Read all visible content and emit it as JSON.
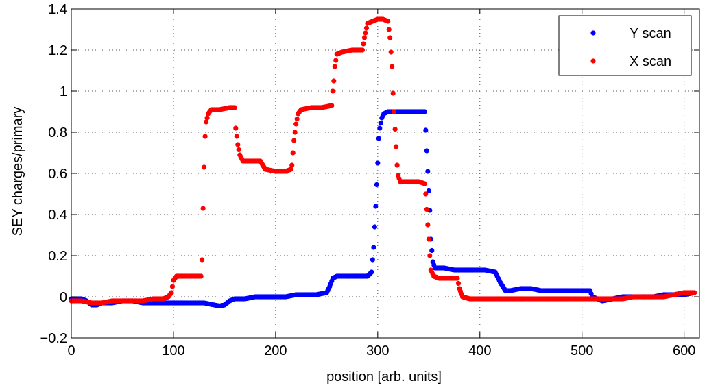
{
  "chart_data": {
    "type": "scatter",
    "title": "",
    "xlabel": "position [arb. units]",
    "ylabel": "SEY charges/primary",
    "xlim": [
      0,
      615
    ],
    "ylim": [
      -0.2,
      1.4
    ],
    "xticks": [
      0,
      100,
      200,
      300,
      400,
      500,
      600
    ],
    "xtick_labels": [
      "0",
      "100",
      "200",
      "300",
      "400",
      "500",
      "600"
    ],
    "yticks": [
      -0.2,
      0,
      0.2,
      0.4,
      0.6,
      0.8,
      1,
      1.2,
      1.4
    ],
    "ytick_labels": [
      "−0.2",
      "0",
      "0.2",
      "0.4",
      "0.6",
      "0.8",
      "1",
      "1.2",
      "1.4"
    ],
    "grid": true,
    "legend_position": "top-right",
    "series": [
      {
        "name": "Y scan",
        "color": "#0000ff",
        "points": [
          [
            0,
            -0.01
          ],
          [
            5,
            -0.01
          ],
          [
            10,
            -0.01
          ],
          [
            15,
            -0.02
          ],
          [
            20,
            -0.04
          ],
          [
            25,
            -0.04
          ],
          [
            30,
            -0.03
          ],
          [
            40,
            -0.03
          ],
          [
            50,
            -0.02
          ],
          [
            60,
            -0.02
          ],
          [
            70,
            -0.03
          ],
          [
            80,
            -0.03
          ],
          [
            90,
            -0.03
          ],
          [
            100,
            -0.03
          ],
          [
            110,
            -0.03
          ],
          [
            120,
            -0.03
          ],
          [
            130,
            -0.03
          ],
          [
            140,
            -0.04
          ],
          [
            145,
            -0.045
          ],
          [
            150,
            -0.04
          ],
          [
            155,
            -0.02
          ],
          [
            160,
            -0.01
          ],
          [
            170,
            -0.01
          ],
          [
            180,
            0.0
          ],
          [
            190,
            0.0
          ],
          [
            200,
            0.0
          ],
          [
            210,
            0.0
          ],
          [
            220,
            0.01
          ],
          [
            230,
            0.01
          ],
          [
            240,
            0.01
          ],
          [
            250,
            0.02
          ],
          [
            253,
            0.05
          ],
          [
            256,
            0.09
          ],
          [
            260,
            0.1
          ],
          [
            270,
            0.1
          ],
          [
            280,
            0.1
          ],
          [
            290,
            0.1
          ],
          [
            294,
            0.12
          ],
          [
            296,
            0.24
          ],
          [
            298,
            0.44
          ],
          [
            300,
            0.65
          ],
          [
            301,
            0.77
          ],
          [
            302,
            0.82
          ],
          [
            304,
            0.87
          ],
          [
            306,
            0.89
          ],
          [
            310,
            0.9
          ],
          [
            320,
            0.9
          ],
          [
            330,
            0.9
          ],
          [
            340,
            0.9
          ],
          [
            346,
            0.9
          ],
          [
            347,
            0.81
          ],
          [
            349,
            0.61
          ],
          [
            351,
            0.42
          ],
          [
            352,
            0.28
          ],
          [
            354,
            0.17
          ],
          [
            356,
            0.14
          ],
          [
            365,
            0.14
          ],
          [
            375,
            0.13
          ],
          [
            385,
            0.13
          ],
          [
            395,
            0.13
          ],
          [
            405,
            0.13
          ],
          [
            415,
            0.12
          ],
          [
            420,
            0.07
          ],
          [
            425,
            0.03
          ],
          [
            430,
            0.03
          ],
          [
            440,
            0.04
          ],
          [
            450,
            0.04
          ],
          [
            460,
            0.03
          ],
          [
            470,
            0.03
          ],
          [
            480,
            0.03
          ],
          [
            490,
            0.03
          ],
          [
            500,
            0.03
          ],
          [
            508,
            0.03
          ],
          [
            510,
            0.0
          ],
          [
            520,
            -0.02
          ],
          [
            530,
            -0.01
          ],
          [
            540,
            0.0
          ],
          [
            550,
            0.0
          ],
          [
            560,
            0.0
          ],
          [
            570,
            0.0
          ],
          [
            580,
            0.01
          ],
          [
            590,
            0.01
          ],
          [
            600,
            0.01
          ],
          [
            610,
            0.02
          ]
        ]
      },
      {
        "name": "X scan",
        "color": "#ff0000",
        "points": [
          [
            0,
            -0.02
          ],
          [
            10,
            -0.02
          ],
          [
            20,
            -0.03
          ],
          [
            30,
            -0.03
          ],
          [
            40,
            -0.02
          ],
          [
            50,
            -0.02
          ],
          [
            60,
            -0.02
          ],
          [
            70,
            -0.02
          ],
          [
            80,
            -0.01
          ],
          [
            90,
            -0.01
          ],
          [
            95,
            0.0
          ],
          [
            98,
            0.02
          ],
          [
            100,
            0.08
          ],
          [
            103,
            0.1
          ],
          [
            110,
            0.1
          ],
          [
            120,
            0.1
          ],
          [
            127,
            0.1
          ],
          [
            128,
            0.18
          ],
          [
            129,
            0.43
          ],
          [
            130,
            0.63
          ],
          [
            131,
            0.78
          ],
          [
            132,
            0.85
          ],
          [
            134,
            0.89
          ],
          [
            137,
            0.91
          ],
          [
            145,
            0.91
          ],
          [
            155,
            0.92
          ],
          [
            160,
            0.92
          ],
          [
            161,
            0.82
          ],
          [
            163,
            0.74
          ],
          [
            165,
            0.69
          ],
          [
            168,
            0.66
          ],
          [
            175,
            0.66
          ],
          [
            185,
            0.66
          ],
          [
            190,
            0.62
          ],
          [
            200,
            0.61
          ],
          [
            210,
            0.61
          ],
          [
            215,
            0.62
          ],
          [
            216,
            0.64
          ],
          [
            217,
            0.7
          ],
          [
            218,
            0.76
          ],
          [
            220,
            0.84
          ],
          [
            222,
            0.89
          ],
          [
            225,
            0.91
          ],
          [
            235,
            0.92
          ],
          [
            245,
            0.92
          ],
          [
            255,
            0.93
          ],
          [
            256,
            1.0
          ],
          [
            257,
            1.05
          ],
          [
            258,
            1.12
          ],
          [
            260,
            1.18
          ],
          [
            265,
            1.19
          ],
          [
            275,
            1.2
          ],
          [
            285,
            1.2
          ],
          [
            287,
            1.26
          ],
          [
            290,
            1.33
          ],
          [
            295,
            1.34
          ],
          [
            300,
            1.35
          ],
          [
            305,
            1.35
          ],
          [
            310,
            1.34
          ],
          [
            312,
            1.26
          ],
          [
            314,
            1.12
          ],
          [
            315,
            0.99
          ],
          [
            316,
            0.9
          ],
          [
            318,
            0.73
          ],
          [
            319,
            0.64
          ],
          [
            320,
            0.59
          ],
          [
            322,
            0.56
          ],
          [
            330,
            0.56
          ],
          [
            340,
            0.56
          ],
          [
            346,
            0.55
          ],
          [
            347,
            0.5
          ],
          [
            349,
            0.35
          ],
          [
            350,
            0.28
          ],
          [
            351,
            0.2
          ],
          [
            352,
            0.13
          ],
          [
            355,
            0.1
          ],
          [
            360,
            0.09
          ],
          [
            370,
            0.09
          ],
          [
            378,
            0.09
          ],
          [
            380,
            0.04
          ],
          [
            383,
            0.0
          ],
          [
            390,
            -0.01
          ],
          [
            400,
            -0.01
          ],
          [
            410,
            -0.01
          ],
          [
            420,
            -0.01
          ],
          [
            430,
            -0.01
          ],
          [
            440,
            -0.01
          ],
          [
            450,
            -0.01
          ],
          [
            460,
            -0.01
          ],
          [
            470,
            -0.01
          ],
          [
            480,
            -0.01
          ],
          [
            490,
            -0.01
          ],
          [
            500,
            -0.01
          ],
          [
            510,
            -0.01
          ],
          [
            520,
            -0.01
          ],
          [
            530,
            -0.01
          ],
          [
            540,
            -0.01
          ],
          [
            550,
            0.0
          ],
          [
            560,
            0.0
          ],
          [
            570,
            0.0
          ],
          [
            580,
            0.0
          ],
          [
            590,
            0.01
          ],
          [
            600,
            0.02
          ],
          [
            610,
            0.02
          ]
        ]
      }
    ]
  }
}
